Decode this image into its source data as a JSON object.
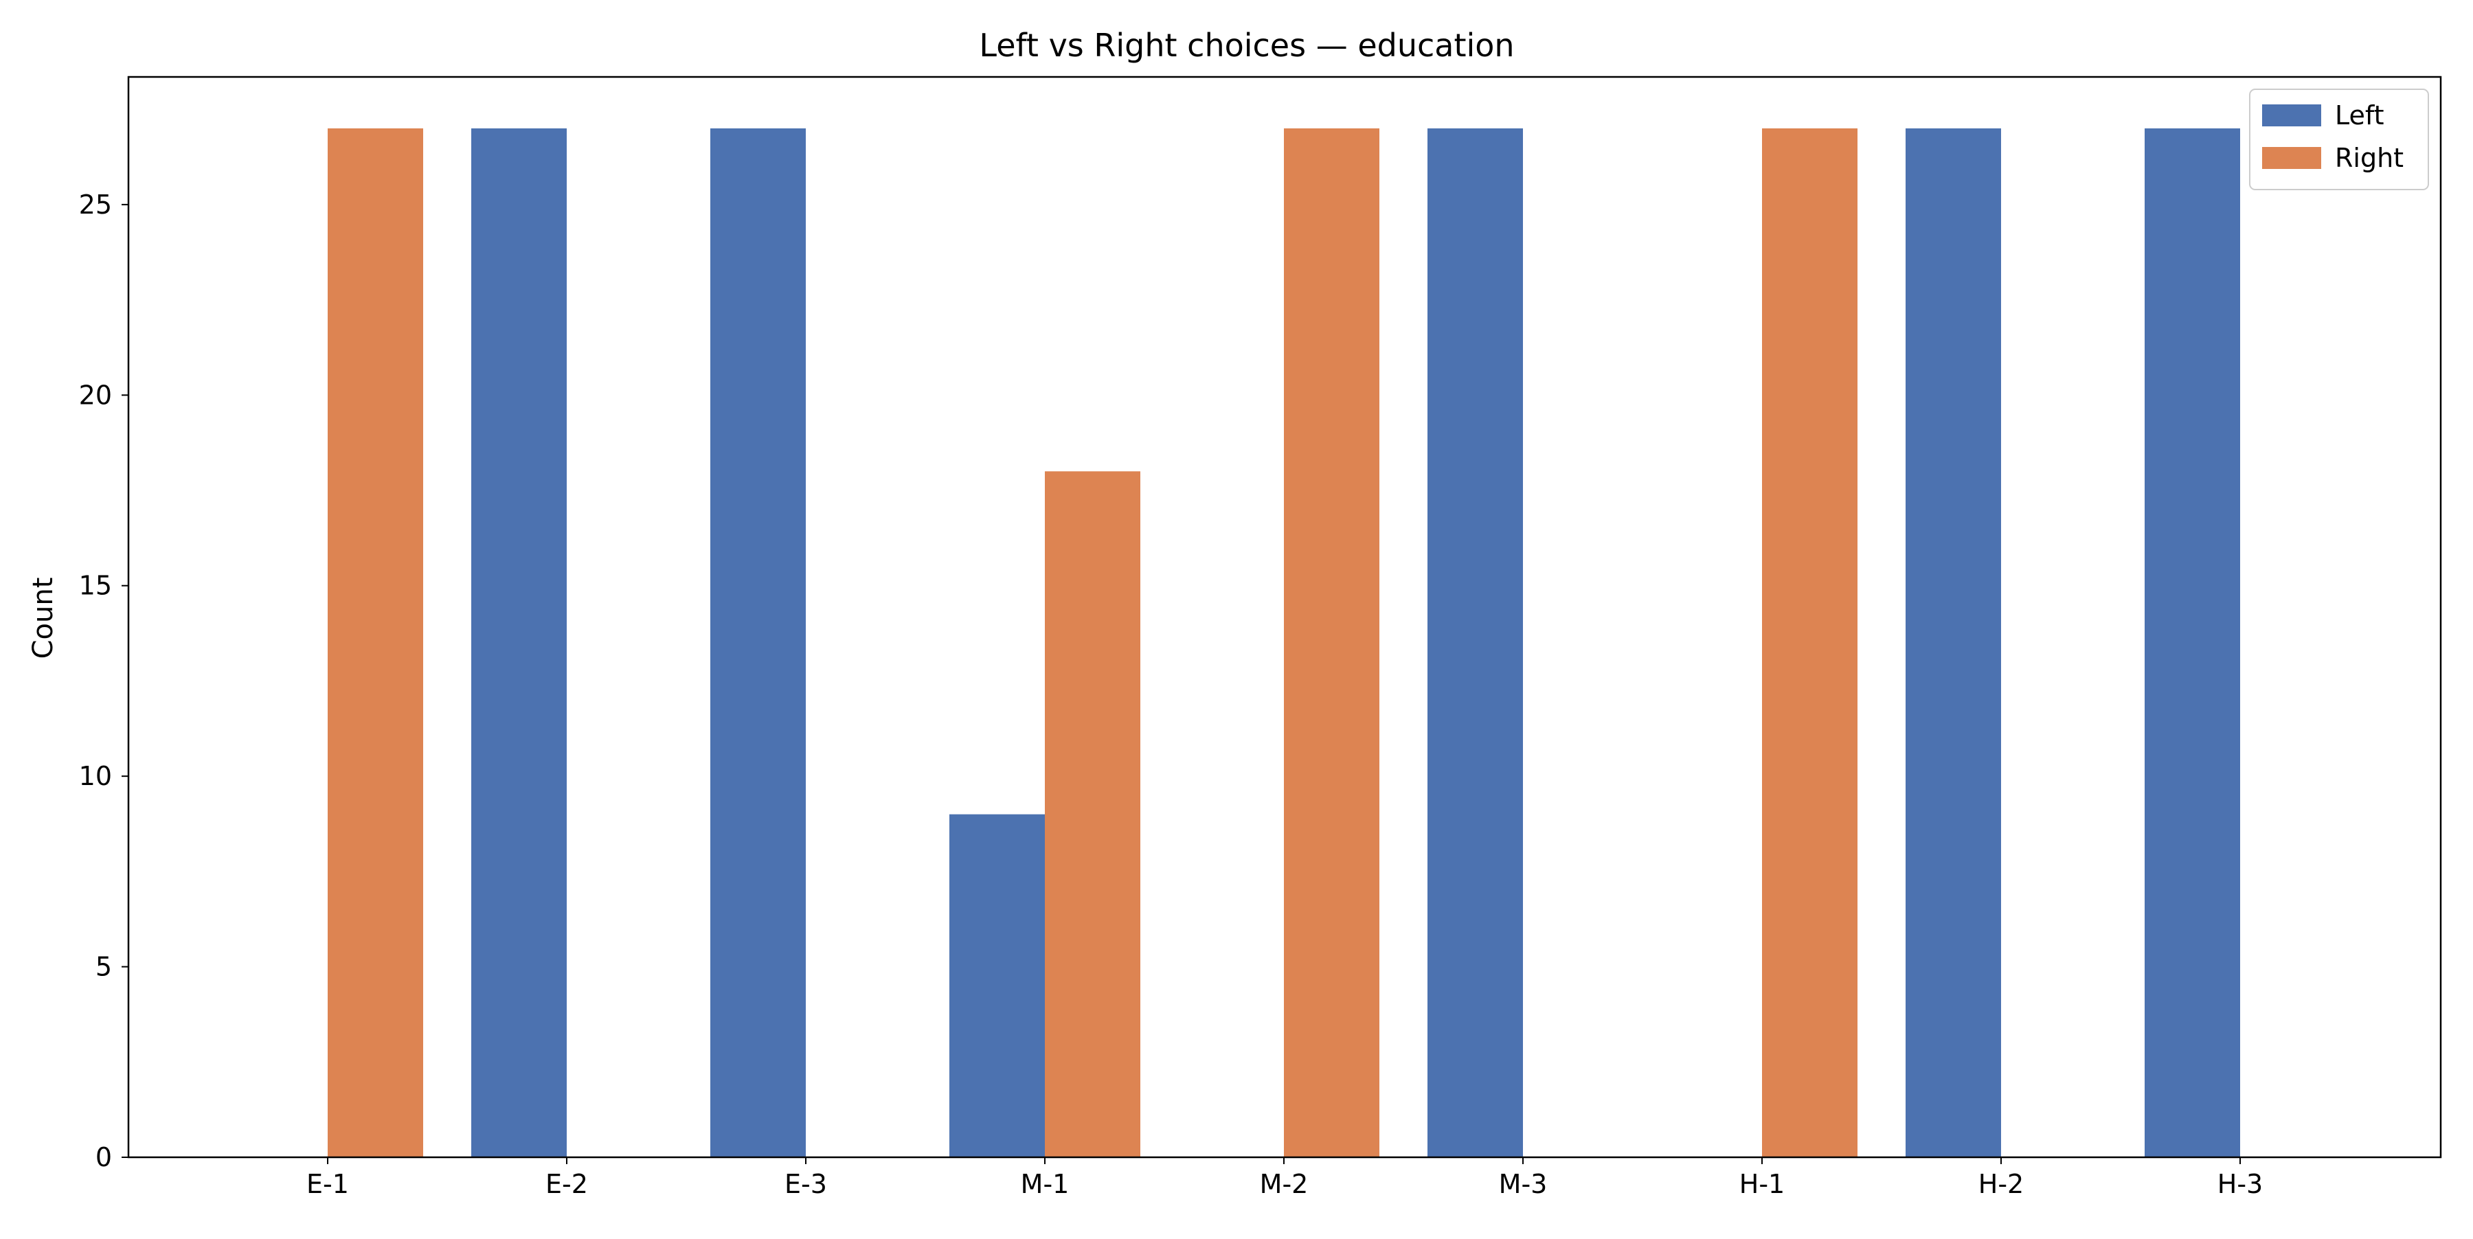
{
  "chart_data": {
    "type": "bar",
    "title": "Left vs Right choices — education",
    "xlabel": "",
    "ylabel": "Count",
    "categories": [
      "E-1",
      "E-2",
      "E-3",
      "M-1",
      "M-2",
      "M-3",
      "H-1",
      "H-2",
      "H-3"
    ],
    "series": [
      {
        "name": "Left",
        "color": "#4c72b0",
        "values": [
          0,
          27,
          27,
          9,
          0,
          27,
          0,
          27,
          27
        ]
      },
      {
        "name": "Right",
        "color": "#dd8452",
        "values": [
          27,
          0,
          0,
          18,
          27,
          0,
          27,
          0,
          0
        ]
      }
    ],
    "ylim": [
      0,
      28.35
    ],
    "yticks": [
      0,
      5,
      10,
      15,
      20,
      25
    ],
    "grid": false,
    "legend_position": "top-right"
  }
}
